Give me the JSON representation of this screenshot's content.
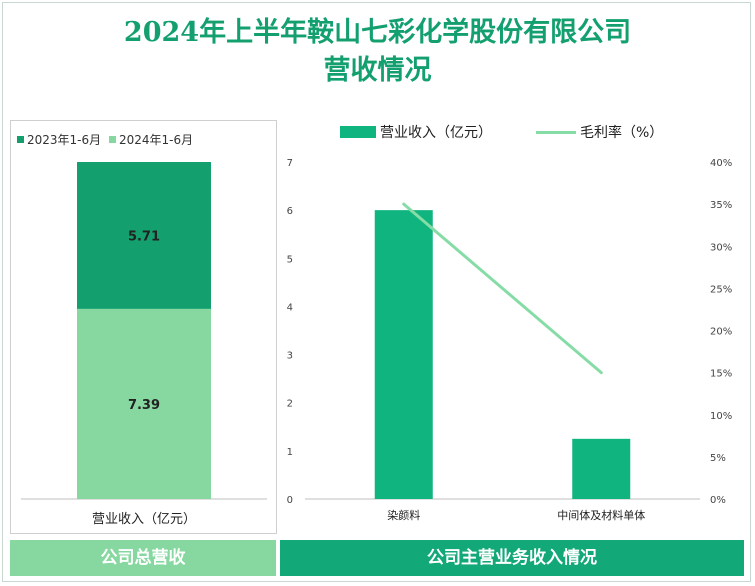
{
  "page": {
    "title_line1": "2024年上半年鞍山七彩化学股份有限公司",
    "title_line2": "营收情况",
    "footer_left": "公司总营收",
    "footer_right": "公司主营业务收入情况"
  },
  "colors": {
    "dark_green": "#13a06e",
    "light_green": "#86d8a0",
    "bar_green": "#10b47e",
    "line_green": "#86dca6"
  },
  "chart_data": [
    {
      "type": "bar",
      "stacked": true,
      "categories": [
        "营业收入（亿元）"
      ],
      "series": [
        {
          "name": "2023年1-6月",
          "values": [
            5.71
          ],
          "color": "#13a06e"
        },
        {
          "name": "2024年1-6月",
          "values": [
            7.39
          ],
          "color": "#86d8a0"
        }
      ],
      "data_labels": [
        "5.71",
        "7.39"
      ],
      "legend": "top-left",
      "xlabel": "营业收入（亿元）"
    },
    {
      "type": "bar",
      "categories": [
        "染颜料",
        "中间体及材料单体"
      ],
      "series": [
        {
          "name": "营业收入（亿元）",
          "type": "bar",
          "axis": "left",
          "values": [
            6.0,
            1.25
          ]
        },
        {
          "name": "毛利率（%）",
          "type": "line",
          "axis": "right",
          "values": [
            35.0,
            15.0
          ]
        }
      ],
      "ylim_left": [
        0,
        7
      ],
      "yticks_left": [
        "0",
        "1",
        "2",
        "3",
        "4",
        "5",
        "6",
        "7"
      ],
      "ylim_right": [
        0,
        40
      ],
      "yticks_right": [
        "0%",
        "5%",
        "10%",
        "15%",
        "20%",
        "25%",
        "30%",
        "35%",
        "40%"
      ],
      "legend": "top-center",
      "grid": false
    }
  ]
}
